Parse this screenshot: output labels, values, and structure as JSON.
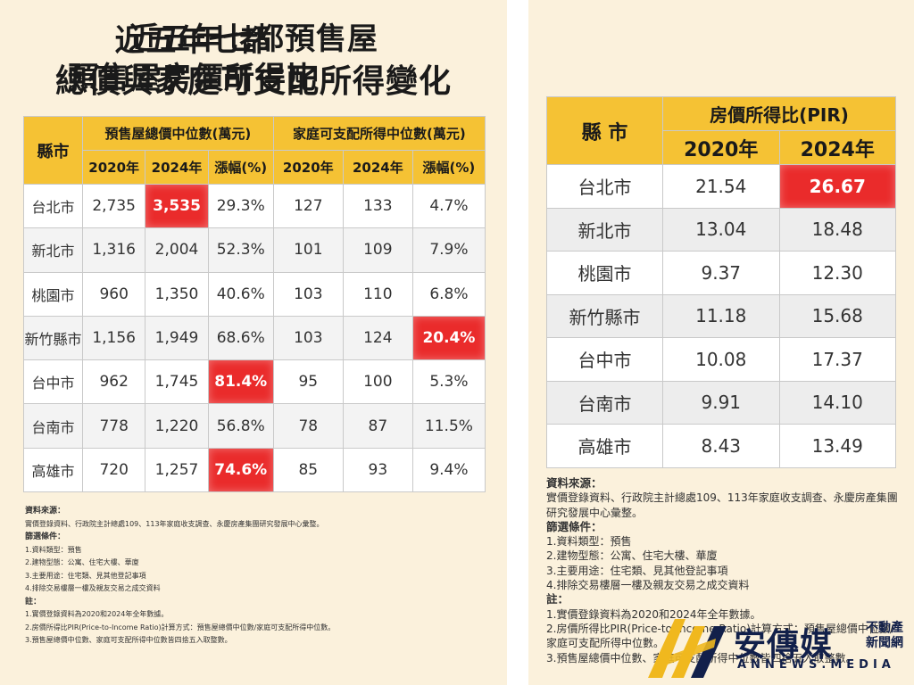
{
  "left": {
    "title_line1": "近五年七都預售屋",
    "title_line2": "總價與家庭可支配所得變化",
    "headers": {
      "city": "縣市",
      "group1": "預售屋總價中位數(萬元)",
      "group2": "家庭可支配所得中位數(萬元)",
      "y2020": "2020年",
      "y2024": "2024年",
      "change": "漲幅(%)"
    },
    "rows": [
      {
        "city": "台北市",
        "p2020": "2,735",
        "p2024": "3,535",
        "pchg": "29.3%",
        "i2020": "127",
        "i2024": "133",
        "ichg": "4.7%"
      },
      {
        "city": "新北市",
        "p2020": "1,316",
        "p2024": "2,004",
        "pchg": "52.3%",
        "i2020": "101",
        "i2024": "109",
        "ichg": "7.9%"
      },
      {
        "city": "桃園市",
        "p2020": "960",
        "p2024": "1,350",
        "pchg": "40.6%",
        "i2020": "103",
        "i2024": "110",
        "ichg": "6.8%"
      },
      {
        "city": "新竹縣市",
        "p2020": "1,156",
        "p2024": "1,949",
        "pchg": "68.6%",
        "i2020": "103",
        "i2024": "124",
        "ichg": "20.4%"
      },
      {
        "city": "台中市",
        "p2020": "962",
        "p2024": "1,745",
        "pchg": "81.4%",
        "i2020": "95",
        "i2024": "100",
        "ichg": "5.3%"
      },
      {
        "city": "台南市",
        "p2020": "778",
        "p2024": "1,220",
        "pchg": "56.8%",
        "i2020": "78",
        "i2024": "87",
        "ichg": "11.5%"
      },
      {
        "city": "高雄市",
        "p2020": "720",
        "p2024": "1,257",
        "pchg": "74.6%",
        "i2020": "85",
        "i2024": "93",
        "ichg": "9.4%"
      }
    ],
    "notes": {
      "source_h": "資料來源：",
      "source": "實價登錄資料、行政院主計總處109、113年家庭收支調查、永慶房產集團研究發展中心彙整。",
      "filter_h": "篩選條件：",
      "filters": [
        "1.資料類型：預售",
        "2.建物型態：公寓、住宅大樓、華廈",
        "3.主要用途：住宅類、見其他登記事項",
        "4.排除交易樓層一樓及親友交易之成交資料"
      ],
      "note_h": "註：",
      "notes": [
        "1.實價登錄資料為2020和2024年全年數據。",
        "2.房價所得比PIR(Price-to-Income Ratio)計算方式：預售屋總價中位數/家庭可支配所得中位數。",
        "3.預售屋總價中位數、家庭可支配所得中位數皆四捨五入取整數。"
      ]
    }
  },
  "right": {
    "title_line1": "近五年七都",
    "title_line2": "預售屋房價所得比",
    "headers": {
      "city": "縣 市",
      "group": "房價所得比(PIR)",
      "y2020": "2020年",
      "y2024": "2024年"
    },
    "rows": [
      {
        "city": "台北市",
        "v2020": "21.54",
        "v2024": "26.67"
      },
      {
        "city": "新北市",
        "v2020": "13.04",
        "v2024": "18.48"
      },
      {
        "city": "桃園市",
        "v2020": "9.37",
        "v2024": "12.30"
      },
      {
        "city": "新竹縣市",
        "v2020": "11.18",
        "v2024": "15.68"
      },
      {
        "city": "台中市",
        "v2020": "10.08",
        "v2024": "17.37"
      },
      {
        "city": "台南市",
        "v2020": "9.91",
        "v2024": "14.10"
      },
      {
        "city": "高雄市",
        "v2020": "8.43",
        "v2024": "13.49"
      }
    ],
    "notes": {
      "source_h": "資料來源：",
      "source": "實價登錄資料、行政院主計總處109、113年家庭收支調查、永慶房產集團研究發展中心彙整。",
      "filter_h": "篩選條件：",
      "filters": [
        "1.資料類型：預售",
        "2.建物型態：公寓、住宅大樓、華廈",
        "3.主要用途：住宅類、見其他登記事項",
        "4.排除交易樓層一樓及親友交易之成交資料"
      ],
      "note_h": "註：",
      "notes": [
        "1.實價登錄資料為2020和2024年全年數據。",
        "2.房價所得比PIR(Price-to-Income Ratio)計算方式：預售屋總價中位數/家庭可支配所得中位數。",
        "3.預售屋總價中位數、家庭可支配所得中位數皆四捨五入取整數。"
      ]
    }
  },
  "logo": {
    "name": "安傳媒",
    "sub1": "不動產",
    "sub2": "新聞網",
    "en": "ANNEWS.MEDIA"
  },
  "colors": {
    "header": "#f5c234",
    "highlight": "#ea2b2b",
    "panel": "#fbf1dc",
    "logo_gold": "#f0b81e",
    "logo_navy": "#12204a"
  }
}
